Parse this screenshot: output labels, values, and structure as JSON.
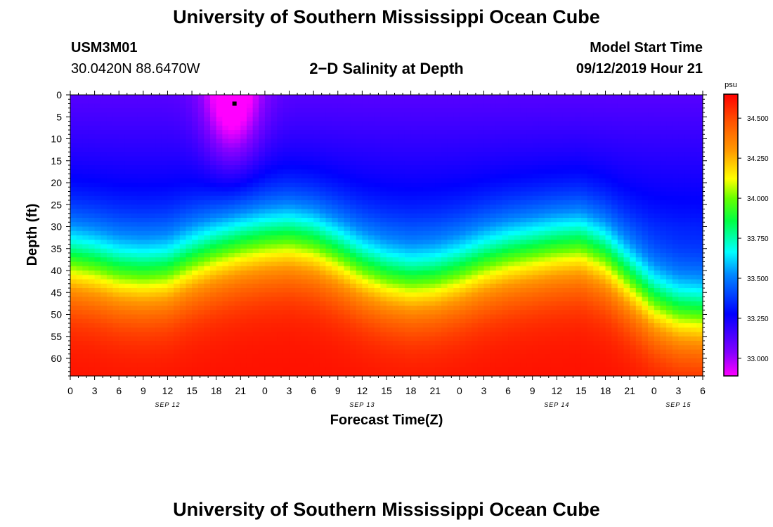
{
  "header": {
    "title_top": "University of Southern Mississippi Ocean Cube",
    "station_id": "USM3M01",
    "location": "30.0420N 88.6470W",
    "subtitle": "2−D Salinity at Depth",
    "model_start_label": "Model Start Time",
    "model_start_value": "09/12/2019 Hour 21",
    "title_bottom": "University of Southern Mississippi Ocean Cube"
  },
  "chart_data": {
    "type": "heatmap",
    "title": "2-D Salinity at Depth",
    "xlabel": "Forecast Time(Z)",
    "ylabel": "Depth (ft)",
    "ylim": [
      0,
      64
    ],
    "xlim_hours": [
      0,
      78
    ],
    "y_ticks": [
      0,
      5,
      10,
      15,
      20,
      25,
      30,
      35,
      40,
      45,
      50,
      55,
      60
    ],
    "x_tick_labels": [
      "0",
      "3",
      "6",
      "9",
      "12",
      "15",
      "18",
      "21",
      "0",
      "3",
      "6",
      "9",
      "12",
      "15",
      "18",
      "21",
      "0",
      "3",
      "6",
      "9",
      "12",
      "15",
      "18",
      "21",
      "0",
      "3",
      "6"
    ],
    "date_labels": [
      {
        "label": "SEP 12",
        "hour": 12
      },
      {
        "label": "SEP 13",
        "hour": 36
      },
      {
        "label": "SEP 14",
        "hour": 60
      },
      {
        "label": "SEP 15",
        "hour": 75
      }
    ],
    "marker": {
      "hour": 20.25,
      "depth": 2
    },
    "colorbar": {
      "unit": "psu",
      "min": 32.89,
      "max": 34.65,
      "tick_values": [
        33.0,
        33.25,
        33.5,
        33.75,
        34.0,
        34.25,
        34.5
      ],
      "tick_labels": [
        "33.000",
        "33.250",
        "33.500",
        "33.750",
        "34.000",
        "34.250",
        "34.500"
      ]
    },
    "field_model": {
      "surface_min": 32.9,
      "surface_max": 33.3,
      "bottom_max": 34.62,
      "fresh_anomaly": {
        "hour": 20,
        "width_hours": 3.5,
        "depth_extent": 16,
        "strength": 0.35
      },
      "halocline_depth_by_hour": [
        [
          0,
          38
        ],
        [
          3,
          39
        ],
        [
          6,
          40.5
        ],
        [
          9,
          41
        ],
        [
          12,
          40.5
        ],
        [
          15,
          38
        ],
        [
          18,
          36
        ],
        [
          21,
          34.5
        ],
        [
          24,
          33.5
        ],
        [
          27,
          33
        ],
        [
          30,
          34
        ],
        [
          33,
          36.5
        ],
        [
          36,
          39.5
        ],
        [
          39,
          41.5
        ],
        [
          42,
          42.5
        ],
        [
          45,
          42
        ],
        [
          48,
          40.5
        ],
        [
          51,
          38.5
        ],
        [
          54,
          37
        ],
        [
          57,
          36
        ],
        [
          60,
          35
        ],
        [
          63,
          34.5
        ],
        [
          66,
          37
        ],
        [
          69,
          42
        ],
        [
          72,
          47
        ],
        [
          75,
          49.5
        ],
        [
          78,
          50
        ]
      ]
    }
  }
}
